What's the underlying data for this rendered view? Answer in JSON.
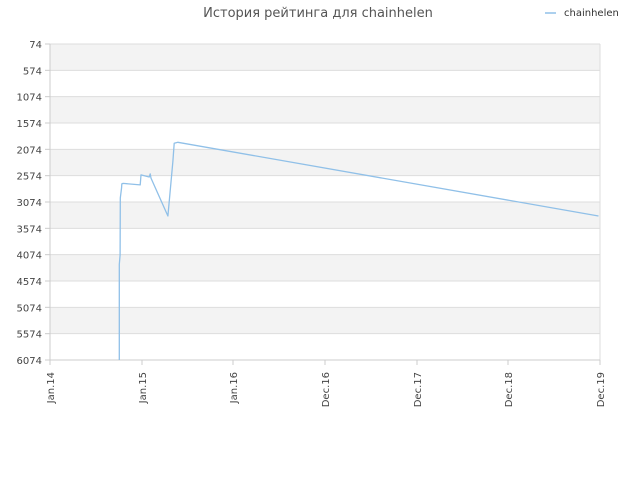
{
  "chart_data": {
    "type": "line",
    "title": "История рейтинга для chainhelen",
    "xlabel": "",
    "ylabel": "",
    "y_axis_inverted": true,
    "ylim": [
      74,
      6074
    ],
    "y_ticks": [
      "74",
      "574",
      "1074",
      "1574",
      "2074",
      "2574",
      "3074",
      "3574",
      "4074",
      "4574",
      "5074",
      "5574",
      "6074"
    ],
    "x_ticks": [
      "Jan.14",
      "Jan.15",
      "Jan.16",
      "Dec.16",
      "Dec.17",
      "Dec.18",
      "Dec.19"
    ],
    "grid": true,
    "legend_position": "top-right",
    "colors": {
      "series": "#90c0e8",
      "band": "#f3f3f3",
      "grid": "#dddddd",
      "axis": "#cccccc"
    },
    "series": [
      {
        "name": "chainhelen",
        "points": [
          {
            "x": "2014-10-03",
            "y": 6074
          },
          {
            "x": "2014-10-03",
            "y": 4260
          },
          {
            "x": "2014-10-06",
            "y": 4080
          },
          {
            "x": "2014-10-07",
            "y": 3000
          },
          {
            "x": "2014-10-12",
            "y": 2800
          },
          {
            "x": "2014-10-13",
            "y": 2730
          },
          {
            "x": "2014-10-18",
            "y": 2720
          },
          {
            "x": "2014-12-25",
            "y": 2750
          },
          {
            "x": "2014-12-28",
            "y": 2560
          },
          {
            "x": "2015-01-30",
            "y": 2600
          },
          {
            "x": "2015-02-03",
            "y": 2540
          },
          {
            "x": "2015-02-06",
            "y": 2620
          },
          {
            "x": "2015-04-15",
            "y": 3340
          },
          {
            "x": "2015-05-05",
            "y": 2300
          },
          {
            "x": "2015-05-10",
            "y": 1960
          },
          {
            "x": "2015-05-25",
            "y": 1940
          },
          {
            "x": "2019-11-25",
            "y": 3340
          }
        ]
      }
    ]
  }
}
